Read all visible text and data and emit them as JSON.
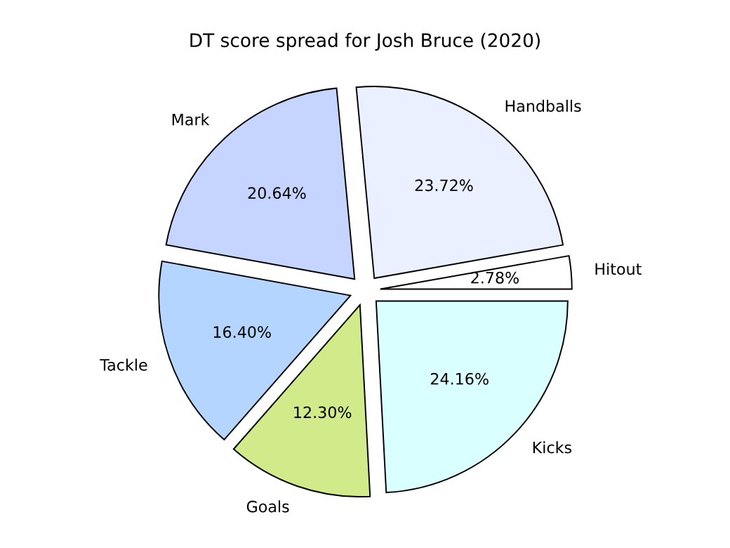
{
  "chart_data": {
    "type": "pie",
    "title": "DT score spread for Josh Bruce (2020)",
    "categories": [
      "Hitout",
      "Handballs",
      "Mark",
      "Tackle",
      "Goals",
      "Kicks"
    ],
    "values": [
      2.78,
      23.72,
      20.64,
      16.4,
      12.3,
      24.16
    ],
    "value_labels": [
      "2.78%",
      "23.72%",
      "20.64%",
      "16.40%",
      "12.30%",
      "24.16%"
    ],
    "colors": [
      "#ffffff",
      "#eaf0ff",
      "#c5d5ff",
      "#b3d5ff",
      "#d1eb8a",
      "#d9ffff"
    ],
    "legend": false
  }
}
